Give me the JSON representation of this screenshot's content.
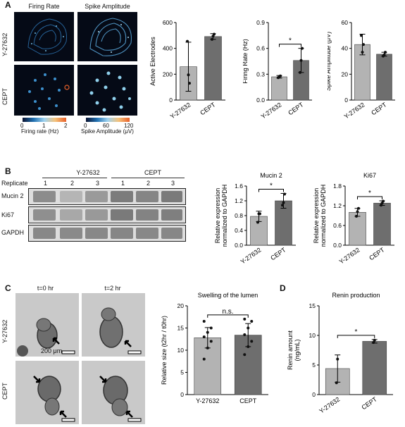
{
  "panel_labels": [
    "A",
    "B",
    "C",
    "D"
  ],
  "panelA": {
    "col_titles": [
      "Firing Rate",
      "Spike Amplitude"
    ],
    "row_labels": [
      "Y-27632",
      "CEPT"
    ],
    "cb_rate": {
      "ticks": [
        "0",
        "1",
        "2"
      ],
      "label": "Firing rate (Hz)",
      "colors": [
        "#0a1230",
        "#1f6fb0",
        "#9fd3f0",
        "#f5c27a",
        "#e8602a"
      ]
    },
    "cb_amp": {
      "ticks": [
        "0",
        "60",
        "120"
      ],
      "label": "Spike Amplitude (μV)",
      "colors": [
        "#0a1230",
        "#1f6fb0",
        "#9fd3f0",
        "#f5c27a",
        "#e8602a"
      ]
    }
  },
  "panelB": {
    "replicate_label": "Replicate",
    "groups": [
      "Y-27632",
      "CEPT"
    ],
    "replicates": [
      "1",
      "2",
      "3",
      "1",
      "2",
      "3"
    ],
    "rows": [
      "Mucin 2",
      "Ki67",
      "GAPDH"
    ]
  },
  "panelC": {
    "times": [
      "t=0 hr",
      "t=2 hr"
    ],
    "rows": [
      "Y-27632",
      "CEPT"
    ],
    "scale": "200 μm"
  },
  "chart_data": [
    {
      "id": "active",
      "type": "bar",
      "title": "",
      "categories": [
        "Y-27632",
        "CEPT"
      ],
      "values": [
        258,
        492
      ],
      "errors": [
        190,
        22
      ],
      "points": [
        [
          455,
          195,
          130
        ],
        [
          470,
          495,
          510
        ]
      ],
      "ylabel": "Active Electrodes",
      "ylim": [
        0,
        600
      ],
      "yticks": [
        "0",
        "200",
        "400",
        "600"
      ],
      "sig": "",
      "colors": [
        "#b3b3b3",
        "#6e6e6e"
      ]
    },
    {
      "id": "firing",
      "type": "bar",
      "title": "",
      "categories": [
        "Y-27632",
        "CEPT"
      ],
      "values": [
        0.27,
        0.46
      ],
      "errors": [
        0.015,
        0.14
      ],
      "points": [
        [
          0.26,
          0.27,
          0.28
        ],
        [
          0.32,
          0.46,
          0.6
        ]
      ],
      "ylabel": "Firing Rate (Hz)",
      "ylim": [
        0,
        0.9
      ],
      "yticks": [
        "0.0",
        "0.3",
        "0.6",
        "0.9"
      ],
      "sig": "*",
      "colors": [
        "#b3b3b3",
        "#6e6e6e"
      ]
    },
    {
      "id": "spike",
      "type": "bar",
      "title": "",
      "categories": [
        "Y-27632",
        "CEPT"
      ],
      "values": [
        43,
        35.5
      ],
      "errors": [
        8,
        1.5
      ],
      "points": [
        [
          50,
          37,
          43
        ],
        [
          34,
          35,
          37
        ]
      ],
      "ylabel": "Spike Amplitude (μV)",
      "ylim": [
        0,
        60
      ],
      "yticks": [
        "0",
        "20",
        "40",
        "60"
      ],
      "sig": "",
      "colors": [
        "#b3b3b3",
        "#6e6e6e"
      ]
    },
    {
      "id": "mucin",
      "type": "bar",
      "title": "Mucin 2",
      "categories": [
        "Y-27632",
        "CEPT"
      ],
      "values": [
        0.78,
        1.2
      ],
      "errors": [
        0.14,
        0.2
      ],
      "points": [
        [
          0.62,
          0.85,
          0.85
        ],
        [
          1.08,
          1.15,
          1.38
        ]
      ],
      "ylabel": "Relative expression normalized to GAPDH",
      "ylim": [
        0,
        1.6
      ],
      "yticks": [
        "0.0",
        "0.4",
        "0.8",
        "1.2",
        "1.6"
      ],
      "sig": "*",
      "colors": [
        "#b3b3b3",
        "#6e6e6e"
      ]
    },
    {
      "id": "ki67",
      "type": "bar",
      "title": "Ki67",
      "categories": [
        "Y-27632",
        "CEPT"
      ],
      "values": [
        1.0,
        1.28
      ],
      "errors": [
        0.12,
        0.07
      ],
      "points": [
        [
          0.88,
          1.02,
          1.12
        ],
        [
          1.22,
          1.28,
          1.34
        ]
      ],
      "ylabel": "Relative expression normalized to GAPDH",
      "ylim": [
        0,
        1.8
      ],
      "yticks": [
        "0.0",
        "0.6",
        "1.2",
        "1.8"
      ],
      "sig": "*",
      "colors": [
        "#b3b3b3",
        "#6e6e6e"
      ]
    },
    {
      "id": "swell",
      "type": "bar",
      "title": "Swelling of the lumen",
      "categories": [
        "Y-27632",
        "CEPT"
      ],
      "values": [
        12.8,
        13.4
      ],
      "errors": [
        2.3,
        2.6
      ],
      "points": [
        [
          8.0,
          10.5,
          12.0,
          13.0,
          14.0,
          15.0,
          16.5
        ],
        [
          9.0,
          10.8,
          12.0,
          13.5,
          15.0,
          16.5,
          17.0
        ]
      ],
      "ylabel": "Relative size (t2hr / t0hr)",
      "ylim": [
        0,
        20
      ],
      "yticks": [
        "0",
        "5",
        "10",
        "15",
        "20"
      ],
      "sig": "n.s.",
      "colors": [
        "#b3b3b3",
        "#6e6e6e"
      ]
    },
    {
      "id": "renin",
      "type": "bar",
      "title": "Renin production",
      "categories": [
        "Y-27632",
        "CEPT"
      ],
      "values": [
        4.4,
        9.0
      ],
      "errors": [
        2.3,
        0.3
      ],
      "points": [
        [
          2.0,
          6.0
        ],
        [
          8.8,
          9.2
        ]
      ],
      "ylabel": "Renin amount (ng/mL)",
      "ylim": [
        0,
        15
      ],
      "yticks": [
        "0",
        "5",
        "10",
        "15"
      ],
      "sig": "*",
      "colors": [
        "#b3b3b3",
        "#6e6e6e"
      ]
    }
  ]
}
